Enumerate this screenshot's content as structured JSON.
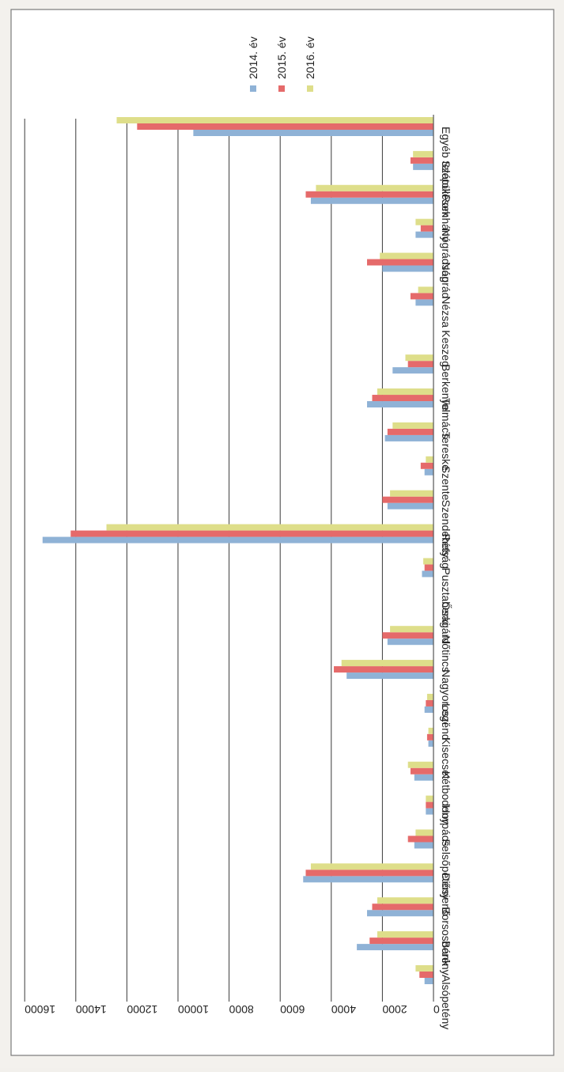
{
  "chart_data": {
    "type": "bar",
    "orientation": "rotated 180° (scanned page upside-down)",
    "categories": [
      "Alsópetény",
      "Bánk",
      "Borsosberény",
      "Diósjenő",
      "Felsőpetény",
      "Horpács",
      "Kétbodony",
      "Kisecset",
      "Legénd",
      "Nagyoroszi",
      "Nőtincs",
      "Ősagárd",
      "Pusztaberki",
      "Rétság",
      "Szendehely",
      "Szente",
      "Tereske",
      "Tolmács",
      "Berkenye",
      "Keszeg",
      "Nézsa",
      "Nógrád",
      "Nógrádsáp",
      "Romhány",
      "Szátok",
      "Egyéb települések"
    ],
    "series": [
      {
        "name": "2014. év",
        "color": "#8fb2d6",
        "values": [
          350,
          3000,
          2600,
          5100,
          750,
          300,
          750,
          200,
          350,
          3400,
          1800,
          0,
          450,
          15300,
          1800,
          350,
          1900,
          2600,
          1600,
          0,
          700,
          2000,
          700,
          4800,
          800,
          9400
        ]
      },
      {
        "name": "2015. év",
        "color": "#e56a6a",
        "values": [
          550,
          2500,
          2400,
          5000,
          1000,
          300,
          900,
          250,
          300,
          3900,
          2000,
          0,
          350,
          14200,
          2000,
          500,
          1800,
          2400,
          1000,
          0,
          900,
          2600,
          500,
          5000,
          900,
          11600
        ]
      },
      {
        "name": "2016. év",
        "color": "#dede8a",
        "values": [
          700,
          2200,
          2200,
          4800,
          700,
          300,
          1000,
          200,
          250,
          3600,
          1700,
          0,
          400,
          12800,
          1700,
          300,
          1600,
          2200,
          1100,
          0,
          600,
          2100,
          700,
          4600,
          800,
          12400
        ]
      }
    ],
    "yticks": [
      0,
      2000,
      4000,
      6000,
      8000,
      10000,
      12000,
      14000,
      16000
    ],
    "ylim": [
      0,
      16000
    ],
    "grid": true,
    "legend": "top-right"
  }
}
